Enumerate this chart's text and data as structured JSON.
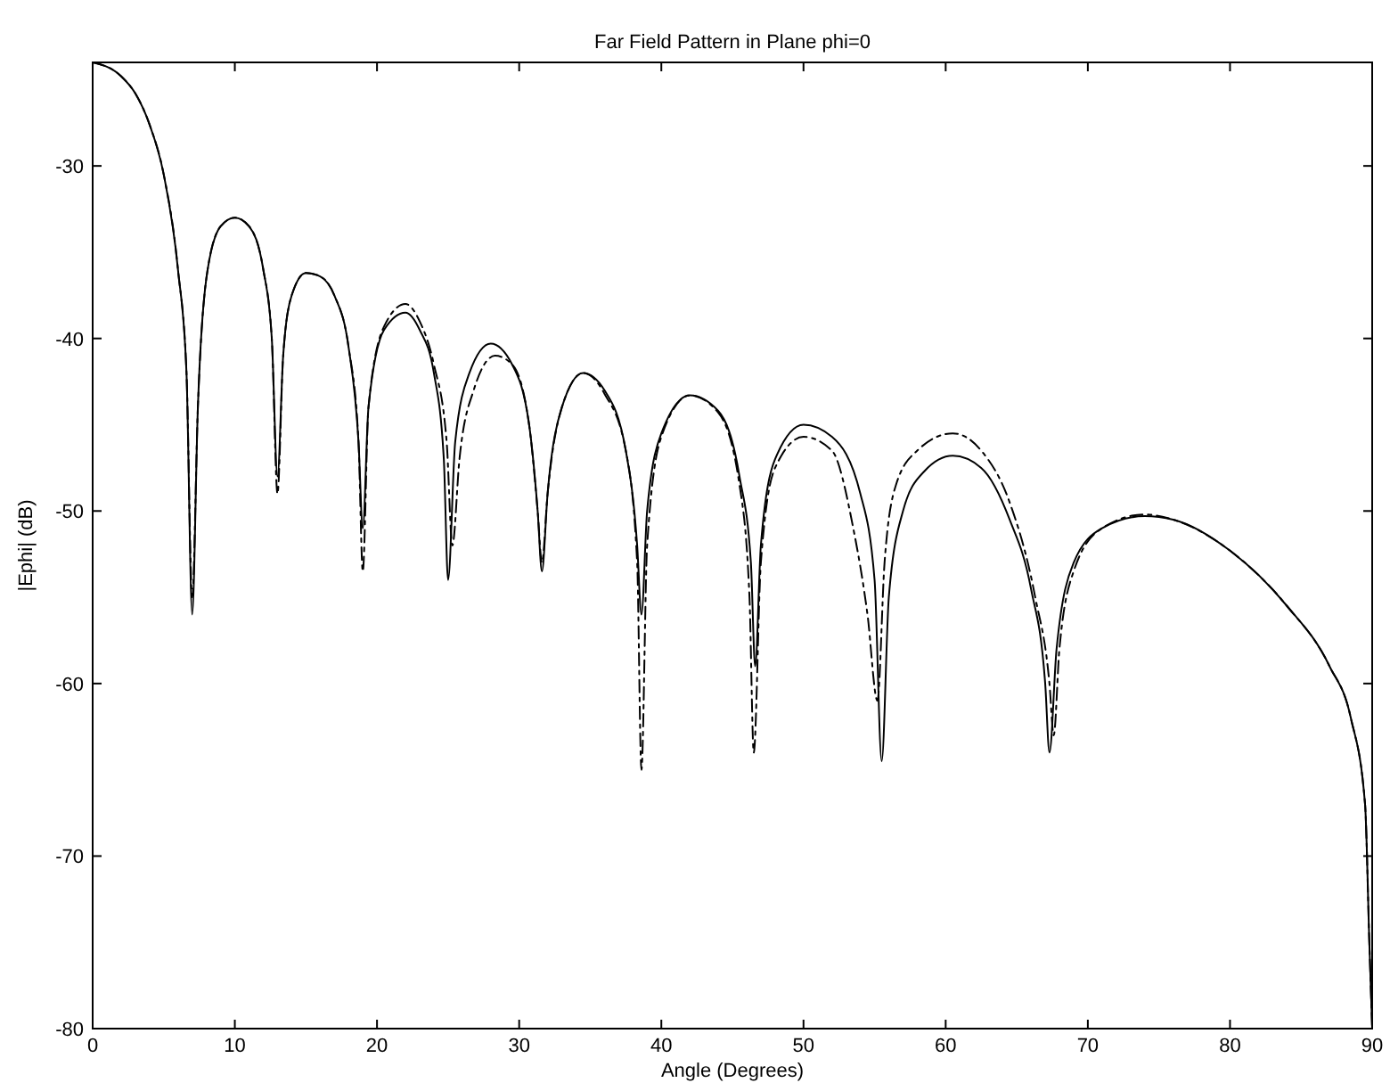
{
  "chart_data": {
    "type": "line",
    "title": "Far Field Pattern in Plane phi=0",
    "xlabel": "Angle (Degrees)",
    "ylabel": "|Ephi| (dB)",
    "xlim": [
      0,
      90
    ],
    "ylim": [
      -80,
      -24
    ],
    "xticks": [
      0,
      10,
      20,
      30,
      40,
      50,
      60,
      70,
      80,
      90
    ],
    "yticks": [
      -30,
      -40,
      -50,
      -60,
      -70,
      -80
    ],
    "grid": false,
    "marker": "none",
    "series": [
      {
        "color": "#000000",
        "line_style": "solid",
        "x": [
          0,
          2,
          3,
          4,
          5,
          6,
          6.6,
          7,
          7.4,
          8,
          9,
          10,
          11,
          12,
          12.6,
          13,
          13.4,
          14,
          15,
          16,
          17,
          18,
          18.7,
          19,
          19.4,
          20.5,
          22,
          23,
          24,
          24.7,
          25,
          25.5,
          26.5,
          28,
          29.5,
          30.7,
          31.3,
          31.6,
          32,
          33,
          34.5,
          36,
          37.5,
          38.3,
          38.6,
          39,
          40,
          42,
          44,
          45.5,
          46.3,
          46.6,
          47,
          48,
          50,
          52,
          54,
          55,
          55.5,
          56,
          57,
          58.5,
          60.5,
          62.5,
          64.5,
          66,
          67,
          67.3,
          67.8,
          69,
          71,
          74,
          76,
          80,
          84,
          87,
          88.5,
          89.5,
          89.8,
          90
        ],
        "values": [
          -24,
          -24.8,
          -25.8,
          -27.6,
          -30.5,
          -36,
          -42,
          -56,
          -44,
          -36.5,
          -33.5,
          -33,
          -33.5,
          -36,
          -40,
          -48,
          -41,
          -37.5,
          -36.2,
          -36.4,
          -37.5,
          -40.5,
          -46,
          -51,
          -44,
          -39.5,
          -38.5,
          -39.5,
          -42,
          -47,
          -54,
          -46,
          -42,
          -40.3,
          -41.5,
          -45,
          -50,
          -53.5,
          -49,
          -44,
          -42,
          -43,
          -46.5,
          -52,
          -56,
          -50,
          -45.5,
          -43.3,
          -44.2,
          -48,
          -53,
          -59,
          -52,
          -47,
          -45,
          -45.7,
          -49,
          -54,
          -64.5,
          -55,
          -50,
          -47.7,
          -46.8,
          -47.5,
          -50.5,
          -54.5,
          -60,
          -64,
          -58,
          -53,
          -51,
          -50.3,
          -50.5,
          -52.3,
          -55.5,
          -59,
          -62,
          -67,
          -75,
          -80
        ]
      },
      {
        "color": "#000000",
        "line_style": "dashed",
        "x": [
          0,
          2,
          3,
          4,
          5,
          6,
          6.6,
          7,
          7.4,
          8,
          9,
          10,
          11,
          12,
          12.6,
          13,
          13.4,
          14,
          15,
          16,
          17,
          18,
          18.7,
          19,
          19.4,
          20.5,
          22,
          23,
          24,
          24.9,
          25.3,
          25.8,
          26.8,
          28.3,
          29.5,
          30.7,
          31.3,
          31.6,
          32,
          33,
          34.5,
          36,
          37.5,
          38.3,
          38.6,
          39,
          40,
          42,
          44,
          45.5,
          46.2,
          46.5,
          47,
          48,
          50,
          52,
          53.5,
          54.5,
          55.2,
          55.7,
          56.5,
          58,
          60.5,
          62.5,
          64.5,
          66.3,
          67.3,
          67.6,
          68,
          69,
          71,
          74,
          76,
          80,
          84,
          87,
          88.5,
          89.5,
          89.8,
          90
        ],
        "values": [
          -24,
          -24.8,
          -25.8,
          -27.6,
          -30.5,
          -36,
          -42,
          -55,
          -44,
          -36.5,
          -33.5,
          -33,
          -33.5,
          -36,
          -40,
          -49,
          -41,
          -37.5,
          -36.2,
          -36.4,
          -37.5,
          -40.5,
          -46,
          -53.5,
          -44,
          -39.3,
          -38,
          -39,
          -41.5,
          -46,
          -52,
          -47,
          -43,
          -41,
          -41.5,
          -45,
          -50,
          -53,
          -49,
          -44,
          -42,
          -43.2,
          -46.5,
          -53,
          -65,
          -52,
          -45.7,
          -43.3,
          -44.3,
          -48.5,
          -55,
          -64,
          -53,
          -47.5,
          -45.7,
          -46.5,
          -51,
          -56,
          -61,
          -53,
          -48.5,
          -46.5,
          -45.5,
          -46.5,
          -49.5,
          -55,
          -60,
          -63,
          -58,
          -53.5,
          -51,
          -50.2,
          -50.5,
          -52.3,
          -55.5,
          -59,
          -62,
          -67,
          -75,
          -80
        ]
      }
    ]
  }
}
